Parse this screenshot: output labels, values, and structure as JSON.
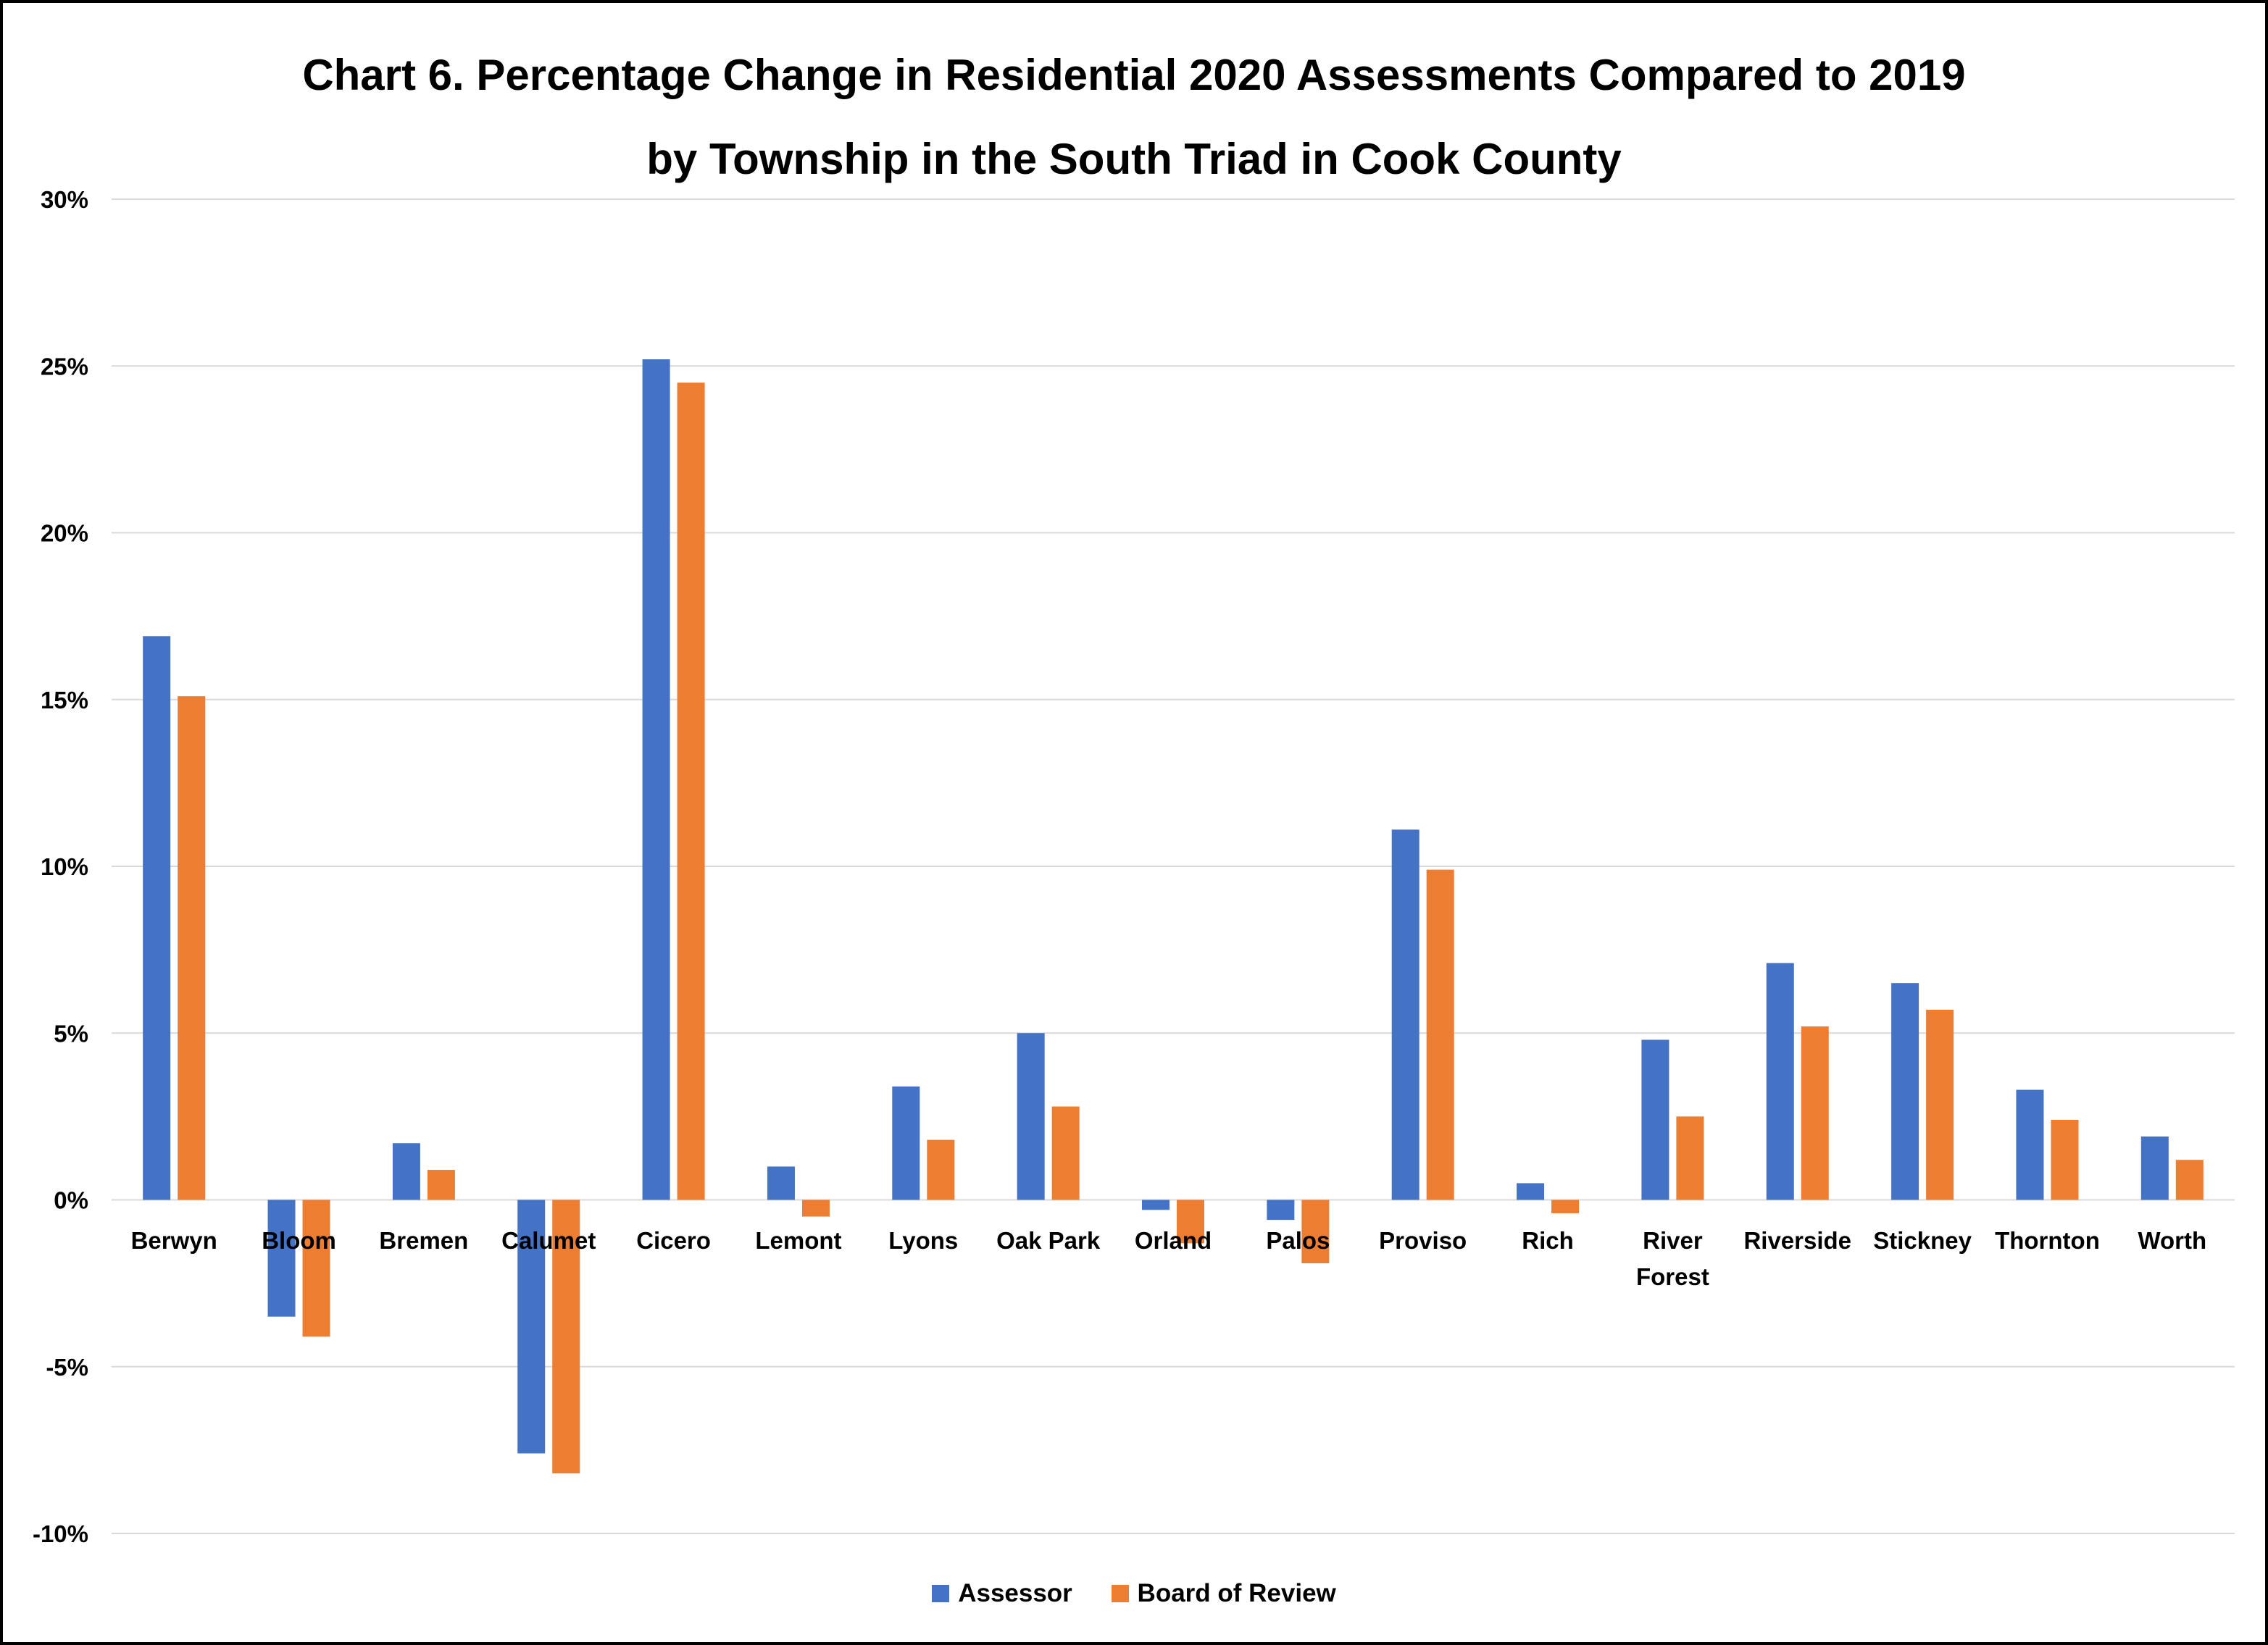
{
  "chart_data": {
    "type": "bar",
    "title": "Chart 6. Percentage Change in Residential 2020 Assessments Compared to 2019",
    "subtitle": "by Township in the South Triad in Cook County",
    "categories": [
      [
        "Berwyn"
      ],
      [
        "Bloom"
      ],
      [
        "Bremen"
      ],
      [
        "Calumet"
      ],
      [
        "Cicero"
      ],
      [
        "Lemont"
      ],
      [
        "Lyons"
      ],
      [
        "Oak Park"
      ],
      [
        "Orland"
      ],
      [
        "Palos"
      ],
      [
        "Proviso"
      ],
      [
        "Rich"
      ],
      [
        "River",
        "Forest"
      ],
      [
        "Riverside"
      ],
      [
        "Stickney"
      ],
      [
        "Thornton"
      ],
      [
        "Worth"
      ]
    ],
    "series": [
      {
        "name": "Assessor",
        "color": "#4472C4",
        "values": [
          16.9,
          -3.5,
          1.7,
          -7.6,
          25.2,
          1.0,
          3.4,
          5.0,
          -0.3,
          -0.6,
          11.1,
          0.5,
          4.8,
          7.1,
          6.5,
          3.3,
          1.9
        ]
      },
      {
        "name": "Board of Review",
        "color": "#ED7D31",
        "values": [
          15.1,
          -4.1,
          0.9,
          -8.2,
          24.5,
          -0.5,
          1.8,
          2.8,
          -1.3,
          -1.9,
          9.9,
          -0.4,
          2.5,
          5.2,
          5.7,
          2.4,
          1.2
        ]
      }
    ],
    "yticks": [
      "30%",
      "25%",
      "20%",
      "15%",
      "10%",
      "5%",
      "0%",
      "-5%",
      "-10%"
    ],
    "ylim": [
      -10,
      30
    ],
    "ytick_step": 5,
    "xlabel": "",
    "ylabel": "",
    "grid": true,
    "legend_position": "bottom"
  }
}
